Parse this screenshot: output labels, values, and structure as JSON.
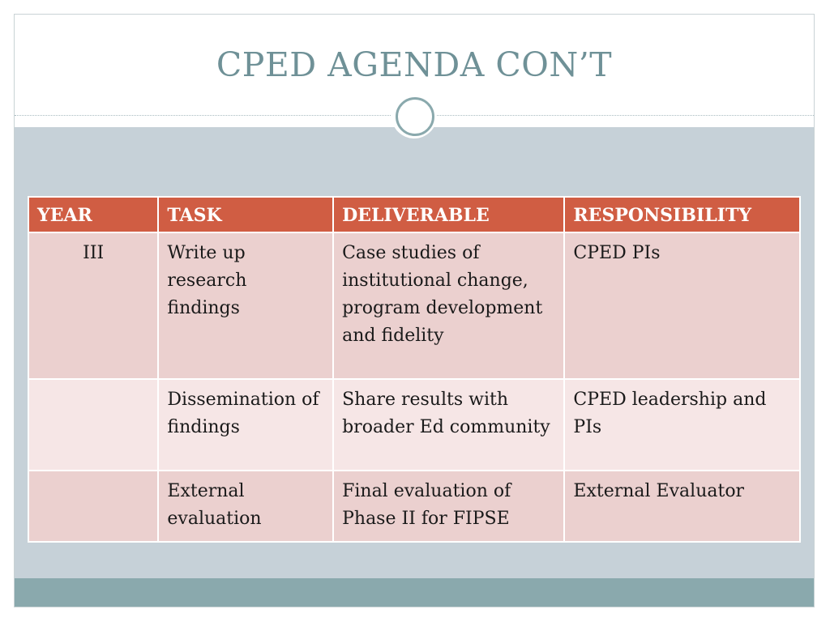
{
  "title": "CPED AGENDA CON’T",
  "colors": {
    "title": "#6f9197",
    "header_fill": "#d05d43",
    "row_odd": "#ebd0cf",
    "row_even": "#f6e6e6",
    "content_background": "#c6d1d8",
    "footer_band": "#8aa9ad"
  },
  "table": {
    "headers": [
      "YEAR",
      "TASK",
      "DELIVERABLE",
      "RESPONSIBILITY"
    ],
    "rows": [
      {
        "year": "III",
        "task": "Write up research findings",
        "deliverable": "Case studies of institutional change, program development and fidelity",
        "responsibility": "CPED PIs"
      },
      {
        "year": "",
        "task": "Dissemination of findings",
        "deliverable": "Share results with broader Ed community",
        "responsibility": "CPED leadership and PIs"
      },
      {
        "year": "",
        "task": "External evaluation",
        "deliverable": "Final evaluation of Phase II for FIPSE",
        "responsibility": "External Evaluator"
      }
    ]
  }
}
